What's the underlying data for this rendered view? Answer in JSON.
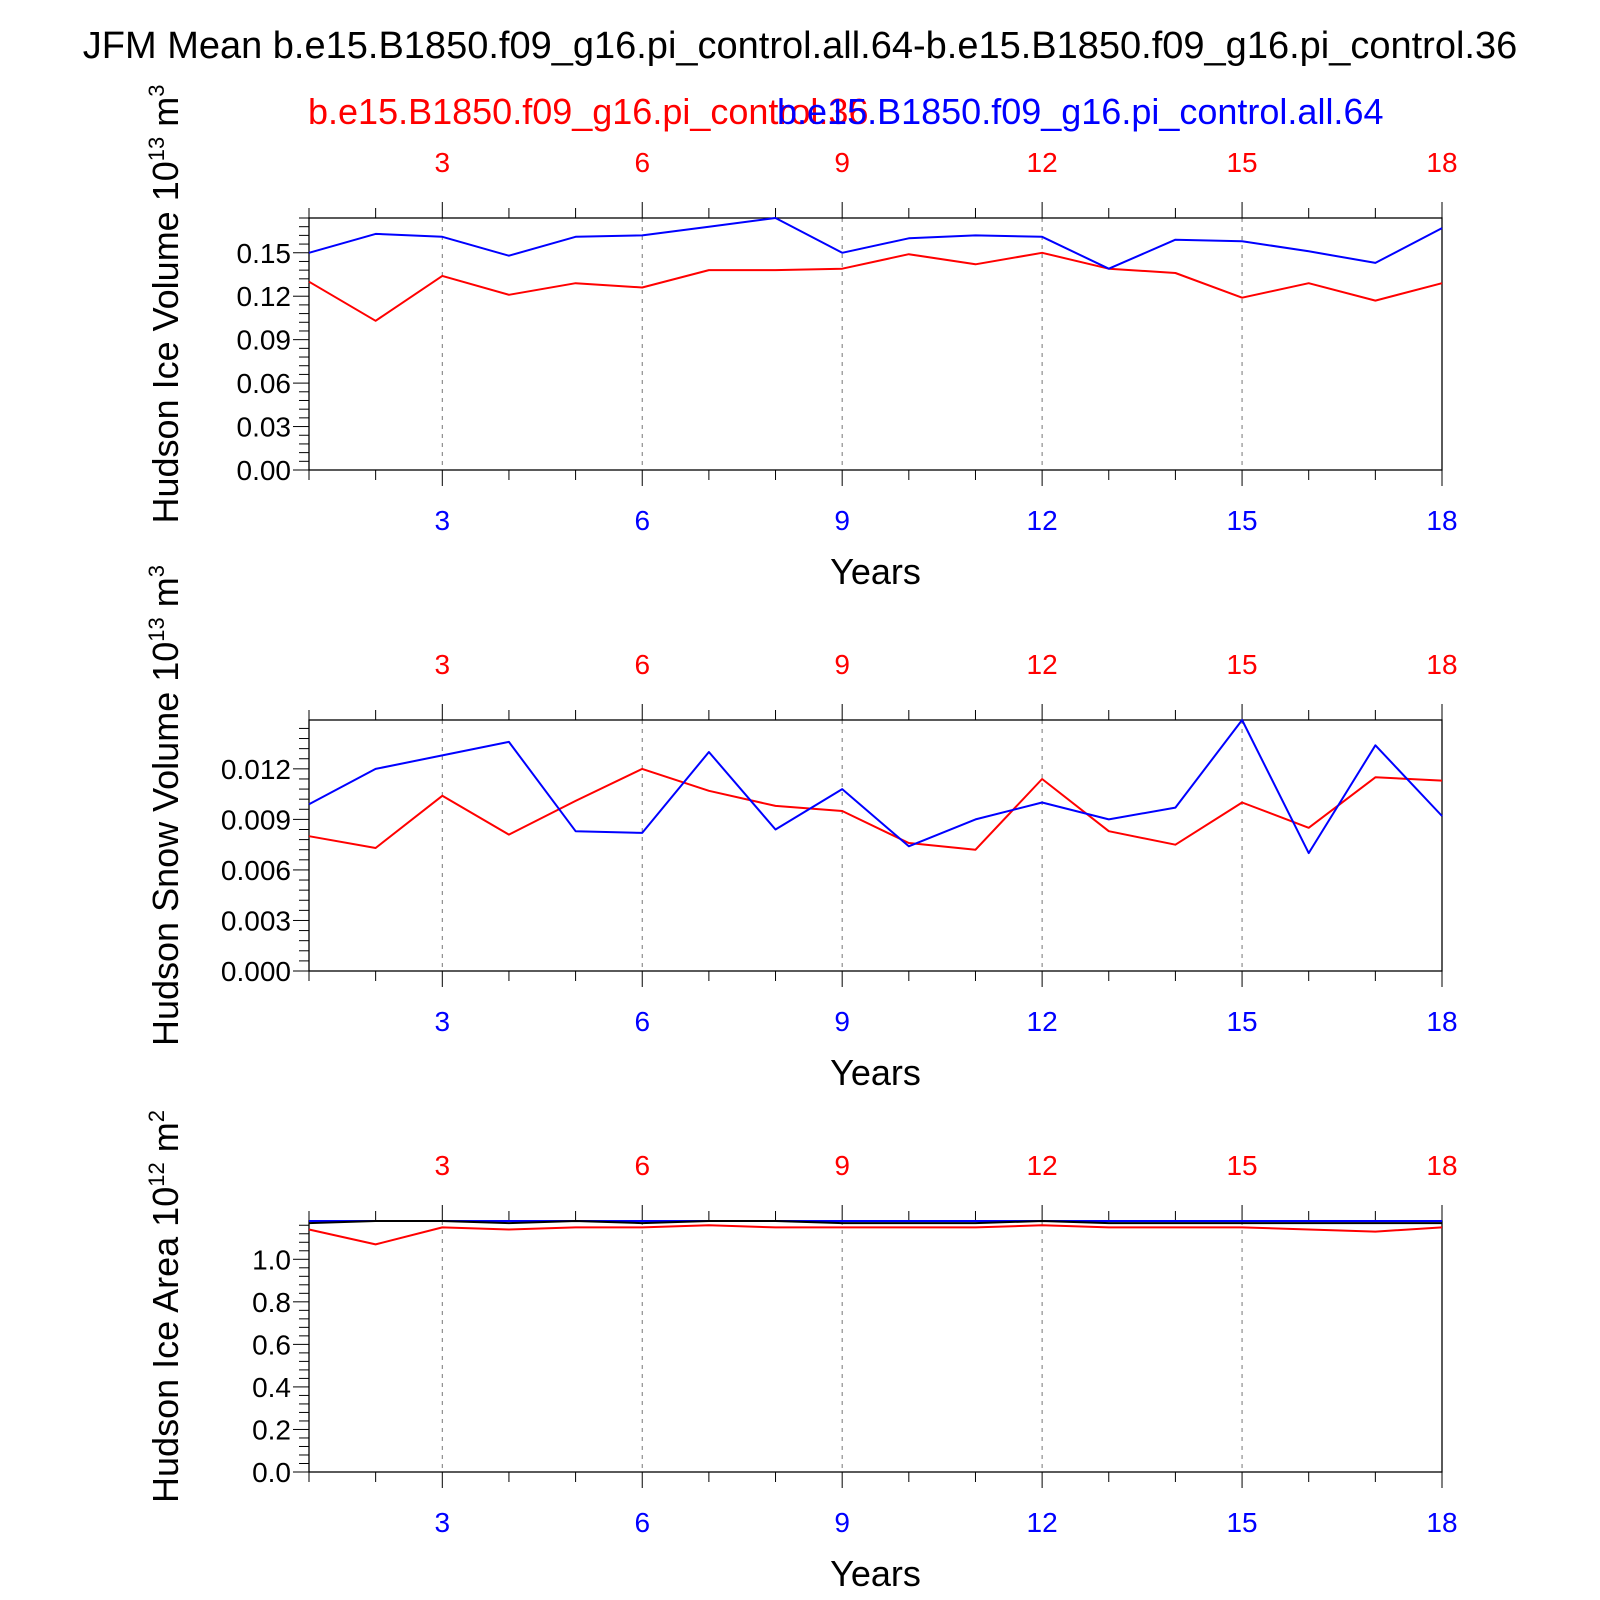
{
  "title": "JFM Mean b.e15.B1850.f09_g16.pi_control.all.64-b.e15.B1850.f09_g16.pi_control.36",
  "legend": {
    "red_label": "b.e15.B1850.f09_g16.pi_control.36",
    "blue_label": "b.e15.B1850.f09_g16.pi_control.all.64"
  },
  "colors": {
    "red": "#ff0000",
    "blue": "#0000ff",
    "axis": "#000000"
  },
  "chart_data": [
    {
      "type": "line",
      "ylabel": "Hudson Ice Volume",
      "units_base": "10",
      "units_exp": "13",
      "units_tail": "m",
      "units_tail_exp": "3",
      "xlabel": "Years",
      "xlim": [
        1,
        18
      ],
      "ylim": [
        0,
        0.174
      ],
      "xticks": [
        3,
        6,
        9,
        12,
        15,
        18
      ],
      "yticks": [
        0.0,
        0.03,
        0.06,
        0.09,
        0.12,
        0.15
      ],
      "ytick_labels": [
        "0.00",
        "0.03",
        "0.06",
        "0.09",
        "0.12",
        "0.15"
      ],
      "grid": "vertical dashed at major x ticks",
      "x": [
        1,
        2,
        3,
        4,
        5,
        6,
        7,
        8,
        9,
        10,
        11,
        12,
        13,
        14,
        15,
        16,
        17,
        18
      ],
      "series": [
        {
          "name": "b.e15.B1850.f09_g16.pi_control.36",
          "color": "#ff0000",
          "values": [
            0.13,
            0.103,
            0.134,
            0.121,
            0.129,
            0.126,
            0.138,
            0.138,
            0.139,
            0.149,
            0.142,
            0.15,
            0.139,
            0.136,
            0.119,
            0.129,
            0.117,
            0.129
          ]
        },
        {
          "name": "b.e15.B1850.f09_g16.pi_control.all.64",
          "color": "#0000ff",
          "values": [
            0.15,
            0.163,
            0.161,
            0.148,
            0.161,
            0.162,
            0.168,
            0.174,
            0.15,
            0.16,
            0.162,
            0.161,
            0.139,
            0.159,
            0.158,
            0.151,
            0.143,
            0.167
          ]
        }
      ]
    },
    {
      "type": "line",
      "ylabel": "Hudson Snow Volume",
      "units_base": "10",
      "units_exp": "13",
      "units_tail": "m",
      "units_tail_exp": "3",
      "xlabel": "Years",
      "xlim": [
        1,
        18
      ],
      "ylim": [
        0,
        0.0149
      ],
      "xticks": [
        3,
        6,
        9,
        12,
        15,
        18
      ],
      "yticks": [
        0.0,
        0.003,
        0.006,
        0.009,
        0.012
      ],
      "ytick_labels": [
        "0.000",
        "0.003",
        "0.006",
        "0.009",
        "0.012"
      ],
      "grid": "vertical dashed at major x ticks",
      "x": [
        1,
        2,
        3,
        4,
        5,
        6,
        7,
        8,
        9,
        10,
        11,
        12,
        13,
        14,
        15,
        16,
        17,
        18
      ],
      "series": [
        {
          "name": "b.e15.B1850.f09_g16.pi_control.36",
          "color": "#ff0000",
          "values": [
            0.008,
            0.0073,
            0.0104,
            0.0081,
            0.0101,
            0.012,
            0.0107,
            0.0098,
            0.0095,
            0.0076,
            0.0072,
            0.0114,
            0.0083,
            0.0075,
            0.01,
            0.0085,
            0.0115,
            0.0113
          ]
        },
        {
          "name": "b.e15.B1850.f09_g16.pi_control.all.64",
          "color": "#0000ff",
          "values": [
            0.0099,
            0.012,
            0.0128,
            0.0136,
            0.0083,
            0.0082,
            0.013,
            0.0084,
            0.0108,
            0.0074,
            0.009,
            0.01,
            0.009,
            0.0097,
            0.0149,
            0.007,
            0.0134,
            0.0092
          ]
        }
      ]
    },
    {
      "type": "line",
      "ylabel": "Hudson Ice Area",
      "units_base": "10",
      "units_exp": "12",
      "units_tail": "m",
      "units_tail_exp": "2",
      "xlabel": "Years",
      "xlim": [
        1,
        18
      ],
      "ylim": [
        0,
        1.18
      ],
      "xticks": [
        3,
        6,
        9,
        12,
        15,
        18
      ],
      "yticks": [
        0.0,
        0.2,
        0.4,
        0.6,
        0.8,
        1.0
      ],
      "ytick_labels": [
        "0.0",
        "0.2",
        "0.4",
        "0.6",
        "0.8",
        "1.0"
      ],
      "grid": "vertical dashed at major x ticks",
      "x": [
        1,
        2,
        3,
        4,
        5,
        6,
        7,
        8,
        9,
        10,
        11,
        12,
        13,
        14,
        15,
        16,
        17,
        18
      ],
      "series": [
        {
          "name": "b.e15.B1850.f09_g16.pi_control.36",
          "color": "#ff0000",
          "values": [
            1.14,
            1.07,
            1.15,
            1.14,
            1.15,
            1.15,
            1.16,
            1.15,
            1.15,
            1.15,
            1.15,
            1.16,
            1.15,
            1.15,
            1.15,
            1.14,
            1.13,
            1.15
          ]
        },
        {
          "name": "b.e15.B1850.f09_g16.pi_control.all.64",
          "color": "#0000ff",
          "values": [
            1.18,
            1.18,
            1.18,
            1.18,
            1.18,
            1.18,
            1.18,
            1.18,
            1.18,
            1.18,
            1.18,
            1.18,
            1.18,
            1.18,
            1.18,
            1.18,
            1.18,
            1.18
          ]
        },
        {
          "name": "",
          "color": "#000000",
          "values": [
            1.17,
            1.18,
            1.18,
            1.17,
            1.18,
            1.17,
            1.18,
            1.18,
            1.17,
            1.17,
            1.17,
            1.18,
            1.17,
            1.17,
            1.17,
            1.17,
            1.17,
            1.17
          ]
        }
      ]
    }
  ]
}
